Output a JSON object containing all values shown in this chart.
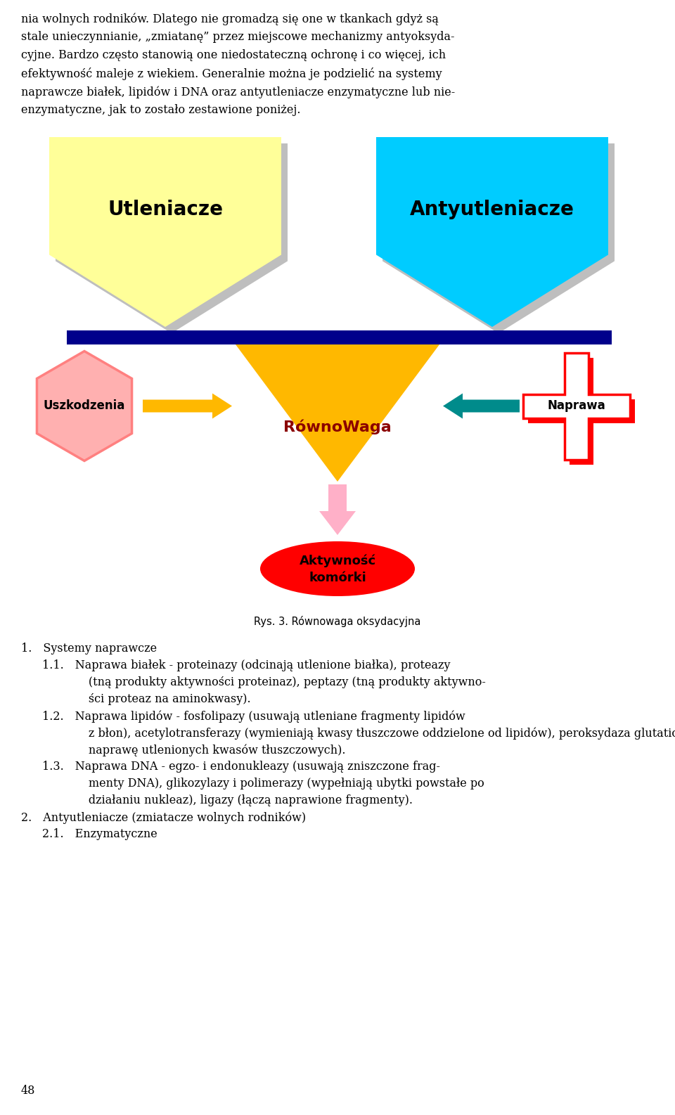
{
  "background_color": "#ffffff",
  "utleniacze_color": "#FFFF99",
  "utleniacze_shadow_color": "#BEBEBE",
  "utleniacze_text": "Utleniacze",
  "antyutleniacze_color": "#00CCFF",
  "antyutleniacze_shadow_color": "#BEBEBE",
  "antyutleniacze_text": "Antyutleniacze",
  "bar_color": "#00008B",
  "triangle_color": "#FFB800",
  "triangle_text": "RównoWaga",
  "triangle_text_color": "#8B0000",
  "hexagon_color": "#FFB0B0",
  "hexagon_edge_color": "#FF8080",
  "hexagon_text": "Uszkodzenia",
  "cross_color": "#FF0000",
  "cross_shadow_color": "#CC0000",
  "cross_text": "Naprawa",
  "arrow_right_color": "#FFB800",
  "arrow_left_color": "#008B8B",
  "down_arrow_color": "#FFB0C8",
  "ellipse_color": "#FF0000",
  "ellipse_text1": "Aktywność",
  "ellipse_text2": "komórki",
  "ellipse_text_color": "#000000",
  "caption": "Rys. 3. Równowaga oksydacyjna",
  "para_text": "nia wolnych rodników. Dlatego nie gromadzą się one w tkankach gdyż są\nstale unieczynnianie, „zmiatanę” przez miejscowe mechanizmy antyoksyda-\ncyjne. Bardzo często stanowią one niedostateczną ochronę i co więcej, ich\nefektywność maleje z wiekiem. Generalnie można je podzielić na systemy\nnaprawcze białek, lipidów i DNA oraz antyutleniacze enzymatyczne lub nie-\nenzymatyczne, jak to zostało zestawione poniżej.",
  "bottom_text": "1. Systemy naprawcze\n  1.1. Naprawa białek - proteinazy (odcinają utlenione białka), proteazy\n     (tną produkty aktywności proteinaz), peptazy (tną produkty aktywno-\n     ści proteaz na aminokwasy).\n  1.2. Naprawa lipidów - fosfolipazy (usuwają utleniane fragmenty lipidów\n     z błon), acetylotransferazy (wymieniają kwasy tłuszczowe oddzielone od lipidów), peroksydaza glutationowa i transferaza (wspomagają\n     naprawę utlenionych kwasów tłuszczowych).\n  1.3. Naprawa DNA - egzo- i endonukleazy (usuwają zniszczone frag-\n     menty DNA), glikozylazy i polimerazy (wypełniają ubytki powstałe po\n     działaniu nukleaz), ligazy (łączą naprawione fragmenty).\n2. Antyutleniacze (zmiatacze wolnych rodników)\n  2.1. Enzymatyczne",
  "page_num": "48",
  "fig_width": 9.6,
  "fig_height": 15.86
}
